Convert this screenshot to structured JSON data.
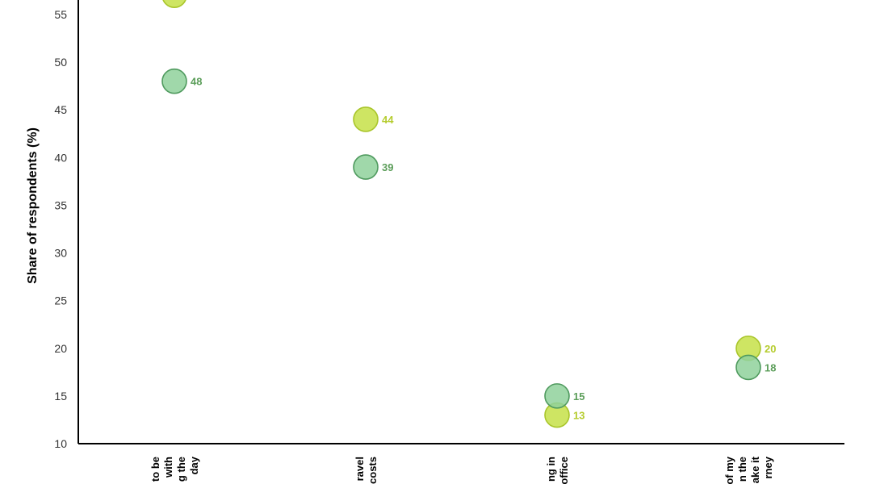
{
  "chart_data": {
    "type": "scatter",
    "ylabel": "Share of respondents (%)",
    "ylim": [
      10,
      57
    ],
    "yticks": [
      10,
      15,
      20,
      25,
      30,
      35,
      40,
      45,
      50,
      55
    ],
    "categories": [
      [
        "to be",
        "with",
        "g the",
        "day"
      ],
      [
        "ravel",
        "costs"
      ],
      [
        "ng in",
        "office"
      ],
      [
        "of my",
        "n the",
        "ake it",
        "rney"
      ]
    ],
    "series": [
      {
        "color": "#c6e048",
        "stroke": "#a9c52a",
        "label_color": "#b5cc2e",
        "values": [
          57,
          44,
          13,
          20
        ]
      },
      {
        "color": "#8fd19b",
        "stroke": "#4f9a5e",
        "label_color": "#5c9e5a",
        "values": [
          48,
          39,
          15,
          18
        ]
      }
    ],
    "data_labels": [
      "",
      "44",
      "13",
      "20",
      "48",
      "39",
      "15",
      "18"
    ]
  }
}
